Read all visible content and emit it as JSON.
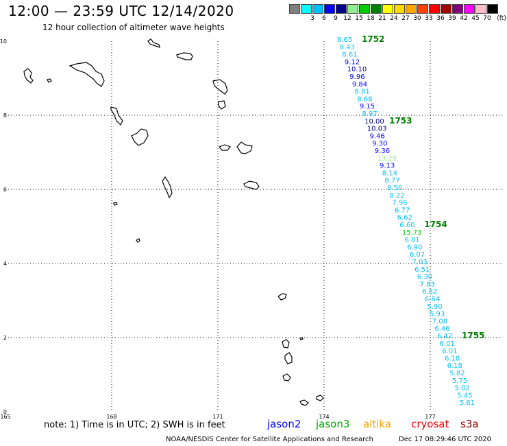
{
  "header": {
    "title": "12:00 — 23:59 UTC 12/14/2020",
    "subtitle": "12 hour collection of altimeter wave heights"
  },
  "colorbar": {
    "unit": "(ft)",
    "swatches": [
      {
        "label": "",
        "color": "#808080"
      },
      {
        "label": "3",
        "color": "#00ffff"
      },
      {
        "label": "6",
        "color": "#00bfff"
      },
      {
        "label": "9",
        "color": "#0000ff"
      },
      {
        "label": "12",
        "color": "#00008b"
      },
      {
        "label": "15",
        "color": "#90ee90"
      },
      {
        "label": "18",
        "color": "#00cc00"
      },
      {
        "label": "21",
        "color": "#008000"
      },
      {
        "label": "24",
        "color": "#ffff00"
      },
      {
        "label": "27",
        "color": "#ffd700"
      },
      {
        "label": "30",
        "color": "#ffa500"
      },
      {
        "label": "33",
        "color": "#ff4500"
      },
      {
        "label": "36",
        "color": "#ff0000"
      },
      {
        "label": "39",
        "color": "#a00000"
      },
      {
        "label": "42",
        "color": "#800080"
      },
      {
        "label": "45",
        "color": "#ff00ff"
      },
      {
        "label": "70",
        "color": "#ffc0cb"
      },
      {
        "label": "",
        "color": "#000000"
      }
    ]
  },
  "axes": {
    "lon_labels": [
      "165",
      "168",
      "171",
      "174",
      "177"
    ],
    "lat_labels": [
      "0",
      "2",
      "4",
      "6",
      "8",
      "10"
    ]
  },
  "track": {
    "values": [
      "8.65",
      "8.43",
      "8.61",
      "9.12",
      "10.10",
      "9.96",
      "9.84",
      "8.81",
      "8.68",
      "9.15",
      "8.97",
      "10.00",
      "10.03",
      "9.46",
      "9.30",
      "9.36",
      "13.29",
      "9.13",
      "8.14",
      "8.77",
      "8.50",
      "8.22",
      "7.96",
      "6.77",
      "6.62",
      "6.60",
      "15.73",
      "6.81",
      "6.90",
      "6.07",
      "7.03",
      "6.51",
      "6.30",
      "7.83",
      "6.82",
      "6.64",
      "5.90",
      "5.93",
      "7.08",
      "6.46",
      "6.42",
      "6.01",
      "6.01",
      "6.18",
      "6.18",
      "5.82",
      "5.75",
      "5.02",
      "5.45",
      "5.61"
    ],
    "colors": [
      "#00bfff",
      "#00bfff",
      "#00bfff",
      "#0000ff",
      "#00008b",
      "#0000ff",
      "#0000ff",
      "#00bfff",
      "#00bfff",
      "#0000ff",
      "#00bfff",
      "#00008b",
      "#00008b",
      "#0000ff",
      "#0000ff",
      "#0000ff",
      "#90ee90",
      "#0000ff",
      "#00bfff",
      "#00bfff",
      "#00bfff",
      "#00bfff",
      "#00bfff",
      "#00bfff",
      "#00bfff",
      "#00bfff",
      "#00cc00",
      "#00bfff",
      "#00bfff",
      "#00bfff",
      "#00bfff",
      "#00bfff",
      "#00bfff",
      "#00bfff",
      "#00bfff",
      "#00bfff",
      "#00bfff",
      "#00bfff",
      "#00bfff",
      "#00bfff",
      "#00bfff",
      "#00bfff",
      "#00bfff",
      "#00bfff",
      "#00bfff",
      "#00bfff",
      "#00bfff",
      "#00bfff",
      "#00bfff",
      "#00bfff"
    ],
    "time_marks": [
      {
        "label": "1752",
        "after_index": 0
      },
      {
        "label": "1753",
        "after_index": 11
      },
      {
        "label": "1754",
        "after_index": 25
      },
      {
        "label": "1755",
        "after_index": 40
      }
    ],
    "time_mark_color": "#008000"
  },
  "footer": {
    "note": "note: 1) Time is in UTC; 2) SWH is in feet",
    "satellites": [
      {
        "name": "jason2",
        "color": "#0000ff"
      },
      {
        "name": "jason3",
        "color": "#00aa00"
      },
      {
        "name": "altika",
        "color": "#ffa500"
      },
      {
        "name": "cryosat",
        "color": "#ff0000"
      },
      {
        "name": "s3a",
        "color": "#a00000"
      }
    ],
    "credit": "NOAA/NESDIS Center for Satellite Applications and Research",
    "timestamp": "Dec 17 08:29:46 UTC 2020"
  }
}
